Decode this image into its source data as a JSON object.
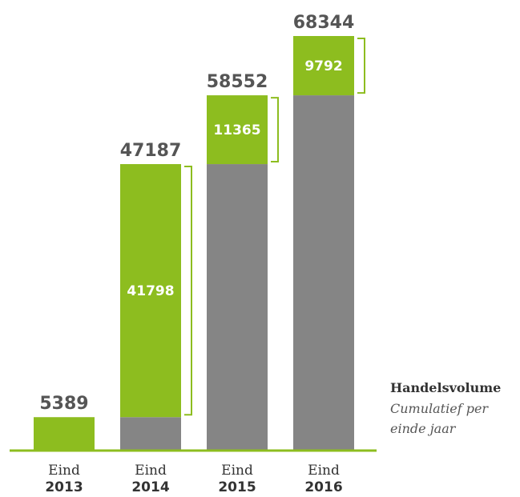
{
  "colors": {
    "increment": "#8dbd1f",
    "previous": "#858585",
    "baseline": "#8dbd1f",
    "bracket": "#8dbd1f"
  },
  "legend": {
    "title": "Handelsvolume",
    "subtitle_line1": "Cumulatief per",
    "subtitle_line2": "einde jaar"
  },
  "chart_data": {
    "type": "bar",
    "stacked": true,
    "categories": [
      {
        "line1": "Eind",
        "line2": "2013"
      },
      {
        "line1": "Eind",
        "line2": "2014"
      },
      {
        "line1": "Eind",
        "line2": "2015"
      },
      {
        "line1": "Eind",
        "line2": "2016"
      }
    ],
    "totals": [
      5389,
      47187,
      58552,
      68344
    ],
    "increments": [
      5389,
      41798,
      11365,
      9792
    ],
    "ylim": [
      0,
      68344
    ],
    "grid": false
  }
}
